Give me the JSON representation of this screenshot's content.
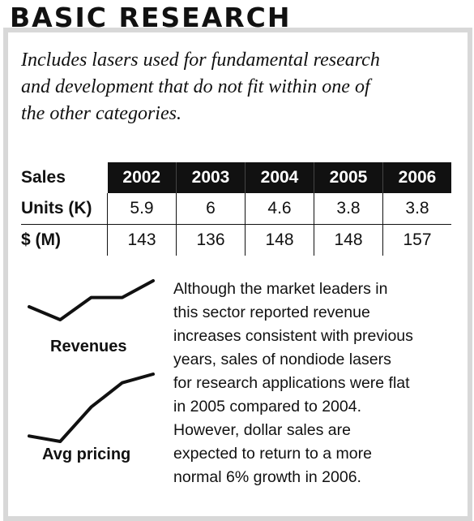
{
  "title": "BASIC RESEARCH",
  "intro_lines": [
    "Includes lasers used for fundamental research",
    "and development that do not fit within one of",
    "the other categories."
  ],
  "table": {
    "corner": "Sales",
    "years": [
      "2002",
      "2003",
      "2004",
      "2005",
      "2006"
    ],
    "rows": [
      {
        "label": "Units (K)",
        "values": [
          "5.9",
          "6",
          "4.6",
          "3.8",
          "3.8"
        ]
      },
      {
        "label": "$ (M)",
        "values": [
          "143",
          "136",
          "148",
          "148",
          "157"
        ]
      }
    ]
  },
  "sparklines": {
    "revenues": {
      "label": "Revenues",
      "values": [
        143,
        136,
        148,
        148,
        157
      ]
    },
    "avg_pricing": {
      "label": "Avg pricing",
      "values": [
        24.2,
        22.7,
        32.2,
        38.9,
        41.3
      ]
    }
  },
  "body_lines": [
    "Although the market leaders in",
    "this sector reported revenue",
    "increases consistent with previous",
    "years, sales of nondiode lasers",
    "for research applications were flat",
    "in 2005 compared to 2004.",
    "However, dollar sales are",
    "expected to return to a more",
    "normal 6% growth in 2006."
  ]
}
